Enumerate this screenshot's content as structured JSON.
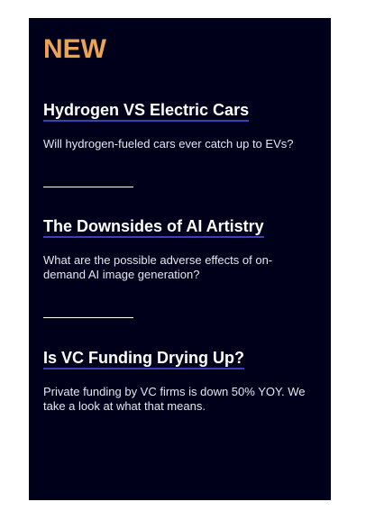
{
  "section": {
    "title": "NEW"
  },
  "articles": [
    {
      "title": "Hydrogen VS Electric Cars",
      "description": "Will hydrogen-fueled cars ever catch up to EVs?"
    },
    {
      "title": "The Downsides of AI Artistry",
      "description": "What are the possible adverse effects of on-demand AI image generation?"
    },
    {
      "title": "Is VC Funding Drying Up?",
      "description": "Private funding by VC firms is down 50% YOY. We take a look at what that means."
    }
  ],
  "colors": {
    "panel_background": "#00001a",
    "heading_accent": "#e9a555",
    "title_underline": "#3b3fb8",
    "text": "#ffffff"
  }
}
